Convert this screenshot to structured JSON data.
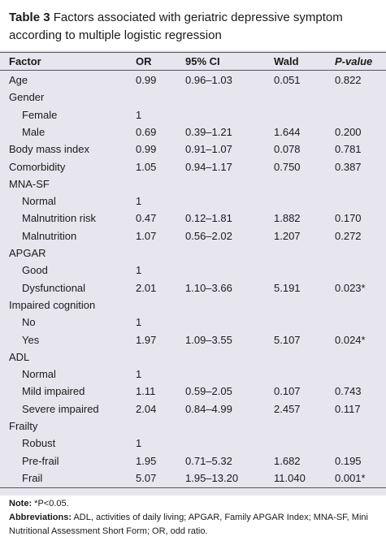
{
  "caption": {
    "table_number": "Table 3",
    "title": "Factors associated with geriatric depressive symptom according to multiple logistic regression"
  },
  "headers": {
    "factor": "Factor",
    "or": "OR",
    "ci": "95% CI",
    "wald": "Wald",
    "p": "P-value"
  },
  "rows": [
    {
      "factor": "Age",
      "indent": false,
      "or": "0.99",
      "ci": "0.96–1.03",
      "wald": "0.051",
      "p": "0.822"
    },
    {
      "factor": "Gender",
      "indent": false,
      "or": "",
      "ci": "",
      "wald": "",
      "p": ""
    },
    {
      "factor": "Female",
      "indent": true,
      "or": "1",
      "ci": "",
      "wald": "",
      "p": ""
    },
    {
      "factor": "Male",
      "indent": true,
      "or": "0.69",
      "ci": "0.39–1.21",
      "wald": "1.644",
      "p": "0.200"
    },
    {
      "factor": "Body mass index",
      "indent": false,
      "or": "0.99",
      "ci": "0.91–1.07",
      "wald": "0.078",
      "p": "0.781"
    },
    {
      "factor": "Comorbidity",
      "indent": false,
      "or": "1.05",
      "ci": "0.94–1.17",
      "wald": "0.750",
      "p": "0.387"
    },
    {
      "factor": "MNA-SF",
      "indent": false,
      "or": "",
      "ci": "",
      "wald": "",
      "p": ""
    },
    {
      "factor": "Normal",
      "indent": true,
      "or": "1",
      "ci": "",
      "wald": "",
      "p": ""
    },
    {
      "factor": "Malnutrition risk",
      "indent": true,
      "or": "0.47",
      "ci": "0.12–1.81",
      "wald": "1.882",
      "p": "0.170"
    },
    {
      "factor": "Malnutrition",
      "indent": true,
      "or": "1.07",
      "ci": "0.56–2.02",
      "wald": "1.207",
      "p": "0.272"
    },
    {
      "factor": "APGAR",
      "indent": false,
      "or": "",
      "ci": "",
      "wald": "",
      "p": ""
    },
    {
      "factor": "Good",
      "indent": true,
      "or": "1",
      "ci": "",
      "wald": "",
      "p": ""
    },
    {
      "factor": "Dysfunctional",
      "indent": true,
      "or": "2.01",
      "ci": "1.10–3.66",
      "wald": "5.191",
      "p": "0.023*"
    },
    {
      "factor": "Impaired cognition",
      "indent": false,
      "or": "",
      "ci": "",
      "wald": "",
      "p": ""
    },
    {
      "factor": "No",
      "indent": true,
      "or": "1",
      "ci": "",
      "wald": "",
      "p": ""
    },
    {
      "factor": "Yes",
      "indent": true,
      "or": "1.97",
      "ci": "1.09–3.55",
      "wald": "5.107",
      "p": "0.024*"
    },
    {
      "factor": "ADL",
      "indent": false,
      "or": "",
      "ci": "",
      "wald": "",
      "p": ""
    },
    {
      "factor": "Normal",
      "indent": true,
      "or": "1",
      "ci": "",
      "wald": "",
      "p": ""
    },
    {
      "factor": "Mild impaired",
      "indent": true,
      "or": "1.11",
      "ci": "0.59–2.05",
      "wald": "0.107",
      "p": "0.743"
    },
    {
      "factor": "Severe impaired",
      "indent": true,
      "or": "2.04",
      "ci": "0.84–4.99",
      "wald": "2.457",
      "p": "0.117"
    },
    {
      "factor": "Frailty",
      "indent": false,
      "or": "",
      "ci": "",
      "wald": "",
      "p": ""
    },
    {
      "factor": "Robust",
      "indent": true,
      "or": "1",
      "ci": "",
      "wald": "",
      "p": ""
    },
    {
      "factor": "Pre-frail",
      "indent": true,
      "or": "1.95",
      "ci": "0.71–5.32",
      "wald": "1.682",
      "p": "0.195"
    },
    {
      "factor": "Frail",
      "indent": true,
      "or": "5.07",
      "ci": "1.95–13.20",
      "wald": "11.040",
      "p": "0.001*"
    }
  ],
  "notes": {
    "note_label": "Note:",
    "note_text": " *P<0.05.",
    "abbr_label": "Abbreviations:",
    "abbr_text": " ADL, activities of daily living; APGAR, Family APGAR Index; MNA-SF, Mini Nutritional Assessment Short Form; OR, odd ratio."
  }
}
